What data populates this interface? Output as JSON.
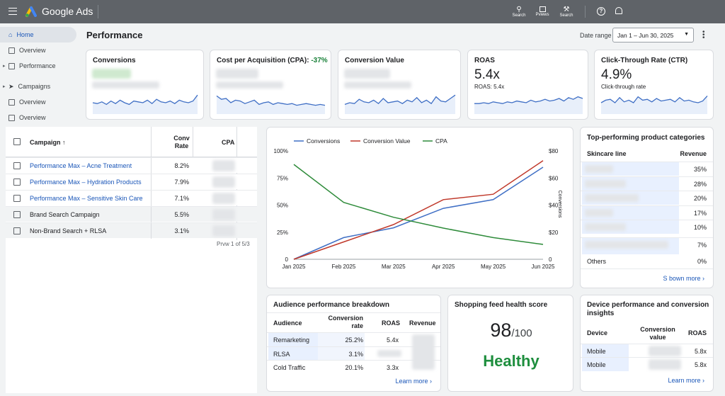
{
  "app": {
    "name": "Google Ads",
    "menu_icon": "menu-icon"
  },
  "toolbar": {
    "search1": "Search",
    "previews": "Pviews",
    "search2": "Search"
  },
  "sidebar": {
    "items": [
      {
        "label": "Home",
        "icon": "home-icon"
      },
      {
        "label": "Overview"
      },
      {
        "label": "Performance"
      },
      {
        "label": "Campaigns"
      },
      {
        "label": "Overview"
      },
      {
        "label": "Overview"
      }
    ]
  },
  "page": {
    "title": "Performance",
    "date_range_label": "Date range",
    "date_range_value": "Jan 1 – Jun 30, 2025"
  },
  "kpis": [
    {
      "title": "Conversions",
      "value": "",
      "sub": ""
    },
    {
      "title": "Cost per Acquisition (CPA): ",
      "delta": "-37%",
      "value": "",
      "sub": ""
    },
    {
      "title": "Conversion Value",
      "value": "",
      "sub": ""
    },
    {
      "title": "ROAS",
      "value": "5.4x",
      "sub": "ROAS: 5.4x"
    },
    {
      "title": "Click-Through Rate (CTR)",
      "value": "4.9%",
      "sub": "Click-through rate"
    }
  ],
  "campaigns": {
    "headers": {
      "campaign": "Campaign",
      "conv_rate_1": "Conv",
      "conv_rate_2": "Rate",
      "cpa": "CPA"
    },
    "rows": [
      {
        "name": "Performance Max – Acne Treatment",
        "rate": "8.2%",
        "link": true
      },
      {
        "name": "Performance Max – Hydration Products",
        "rate": "7.9%",
        "link": true
      },
      {
        "name": "Performance Max – Sensitive Skin Care",
        "rate": "7.1%",
        "link": true
      },
      {
        "name": "Brand Search Campaign",
        "rate": "5.5%",
        "link": false
      },
      {
        "name": "Non-Brand Search + RLSA",
        "rate": "3.1%",
        "link": false
      }
    ],
    "pagination": "Prvw 1 of 5/3"
  },
  "chart_data": {
    "type": "line",
    "x": [
      "Jan 2025",
      "Feb 2025",
      "Mar 2025",
      "Apr 2025",
      "May 2025",
      "Jun 2025"
    ],
    "series": [
      {
        "name": "Conversions",
        "color": "#3f6fc5",
        "values": [
          0,
          20,
          29,
          47,
          55,
          85
        ]
      },
      {
        "name": "Conversion Value",
        "color": "#c0392b",
        "values": [
          0,
          16,
          32,
          55,
          60,
          91
        ]
      },
      {
        "name": "CPA",
        "color": "#2e8b3a",
        "values": [
          70,
          42,
          31,
          23,
          16,
          11
        ]
      }
    ],
    "yleft_ticks": [
      "100%",
      "75%",
      "50%",
      "25%",
      "0"
    ],
    "yright_ticks": [
      "$80",
      "$60",
      "$40",
      "$20",
      "0"
    ],
    "yright_label": "Conversions",
    "ylim_left": [
      0,
      100
    ],
    "ylim_right": [
      0,
      80
    ],
    "legend": "top"
  },
  "top_products": {
    "title": "Top-performing product categories",
    "col1": "Skincare line",
    "col2": "Revenue",
    "values": [
      "35%",
      "28%",
      "20%",
      "17%",
      "10%",
      "7%"
    ],
    "others_label": "Others",
    "others_value": "0%",
    "link": "S  bown more"
  },
  "audience": {
    "title": "Audience performance breakdown",
    "headers": {
      "audience": "Audience",
      "conv1": "Conversion",
      "conv2": "rate",
      "roas": "ROAS",
      "revenue": "Revenue"
    },
    "rows": [
      {
        "name": "Remarketing",
        "rate": "25.2%",
        "roas": "5.4x"
      },
      {
        "name": "RLSA",
        "rate": "3.1%",
        "roas": ""
      },
      {
        "name": "Cold Traffic",
        "rate": "20.1%",
        "roas": "3.3x"
      }
    ],
    "link": "Learn more"
  },
  "feed": {
    "title": "Shopping feed health score",
    "score": "98",
    "out_of": "/100",
    "status": "Healthy"
  },
  "device": {
    "title1": "Device performance and conversion",
    "title2": "insights",
    "headers": {
      "device": "Device",
      "conv1": "Conversion",
      "conv2": "value",
      "roas": "ROAS"
    },
    "rows": [
      {
        "name": "Mobile",
        "roas": "5.8x"
      },
      {
        "name": "Mobile",
        "roas": "5.8x"
      }
    ],
    "link": "Learn more"
  }
}
